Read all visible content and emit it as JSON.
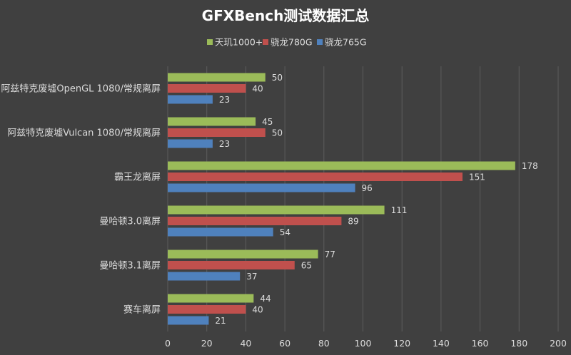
{
  "chart_data": {
    "type": "bar",
    "orientation": "horizontal",
    "title": "GFXBench测试数据汇总",
    "xlabel": "",
    "ylabel": "",
    "xlim": [
      0,
      200
    ],
    "x_ticks": [
      0,
      20,
      40,
      60,
      80,
      100,
      120,
      140,
      160,
      180,
      200
    ],
    "grid": true,
    "legend_position": "top",
    "categories": [
      "阿兹特克废墟OpenGL 1080/常规离屏",
      "阿兹特克废墟Vulcan 1080/常规离屏",
      "霸王龙离屏",
      "曼哈顿3.0离屏",
      "曼哈顿3.1离屏",
      "赛车离屏"
    ],
    "series": [
      {
        "name": "天玑1000+",
        "color": "#9bbb59",
        "values": [
          50,
          45,
          178,
          111,
          77,
          44
        ]
      },
      {
        "name": "骁龙780G",
        "color": "#c0504d",
        "values": [
          40,
          50,
          151,
          89,
          65,
          40
        ]
      },
      {
        "name": "骁龙765G",
        "color": "#4f81bd",
        "values": [
          23,
          23,
          96,
          54,
          37,
          21
        ]
      }
    ]
  }
}
